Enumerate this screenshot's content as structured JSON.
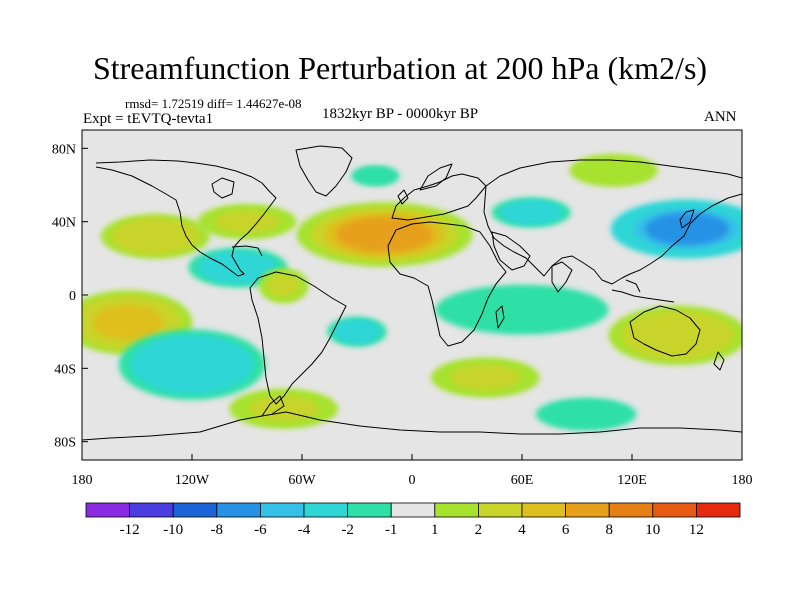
{
  "title": "Streamfunction Perturbation at 200 hPa (km2/s)",
  "stats_line": "rmsd= 1.72519 diff= 1.44627e-08",
  "period": "1832kyr BP - 0000kyr BP",
  "experiment": "Expt = tEVTQ-tevta1",
  "season": "ANN",
  "lat_ticks": [
    {
      "label": "80N",
      "lat": 80
    },
    {
      "label": "40N",
      "lat": 40
    },
    {
      "label": "0",
      "lat": 0
    },
    {
      "label": "40S",
      "lat": -40
    },
    {
      "label": "80S",
      "lat": -80
    }
  ],
  "lon_ticks": [
    {
      "label": "180",
      "lon": -180
    },
    {
      "label": "120W",
      "lon": -120
    },
    {
      "label": "60W",
      "lon": -60
    },
    {
      "label": "0",
      "lon": 0
    },
    {
      "label": "60E",
      "lon": 60
    },
    {
      "label": "120E",
      "lon": 120
    },
    {
      "label": "180",
      "lon": 180
    }
  ],
  "colorbar": {
    "colors": [
      "#8a2be2",
      "#4b3ee0",
      "#1b64d8",
      "#2592e6",
      "#35c0e8",
      "#2fd6d6",
      "#2ee0a6",
      "#e5e5e5",
      "#a6e22e",
      "#c8d42a",
      "#dfbf1f",
      "#e6a01a",
      "#e67f15",
      "#e65a12",
      "#e52a10"
    ],
    "labels": [
      "-12",
      "-10",
      "-8",
      "-6",
      "-4",
      "-2",
      "-1",
      "1",
      "2",
      "4",
      "6",
      "8",
      "10",
      "12"
    ]
  },
  "anomaly_field": [
    {
      "lon": -15,
      "lat": 33,
      "rlon": 30,
      "rlat": 11,
      "value": 6
    },
    {
      "lon": -155,
      "lat": -15,
      "rlon": 22,
      "rlat": 11,
      "value": 4
    },
    {
      "lon": -140,
      "lat": 32,
      "rlon": 22,
      "rlat": 9,
      "value": 3
    },
    {
      "lon": 150,
      "lat": 36,
      "rlon": 26,
      "rlat": 10,
      "value": -7
    },
    {
      "lon": 65,
      "lat": 45,
      "rlon": 16,
      "rlat": 6,
      "value": -3
    },
    {
      "lon": -120,
      "lat": -38,
      "rlon": 25,
      "rlat": 12,
      "value": -4
    },
    {
      "lon": -95,
      "lat": 15,
      "rlon": 20,
      "rlat": 8,
      "value": -3
    },
    {
      "lon": -30,
      "lat": -20,
      "rlon": 12,
      "rlat": 6,
      "value": -3
    },
    {
      "lon": 60,
      "lat": -8,
      "rlon": 35,
      "rlat": 10,
      "value": -2
    },
    {
      "lon": 145,
      "lat": -22,
      "rlon": 28,
      "rlat": 12,
      "value": 3
    },
    {
      "lon": 40,
      "lat": -45,
      "rlon": 22,
      "rlat": 8,
      "value": 2
    },
    {
      "lon": -70,
      "lat": -62,
      "rlon": 22,
      "rlat": 8,
      "value": 2
    },
    {
      "lon": 95,
      "lat": -65,
      "rlon": 25,
      "rlat": 8,
      "value": -1.5
    },
    {
      "lon": 110,
      "lat": 68,
      "rlon": 22,
      "rlat": 8,
      "value": 1.8
    },
    {
      "lon": -20,
      "lat": 65,
      "rlon": 12,
      "rlat": 5,
      "value": -1.5
    },
    {
      "lon": -90,
      "lat": 40,
      "rlon": 20,
      "rlat": 7,
      "value": 2
    },
    {
      "lon": -70,
      "lat": 5,
      "rlon": 10,
      "rlat": 7,
      "value": 2
    }
  ]
}
